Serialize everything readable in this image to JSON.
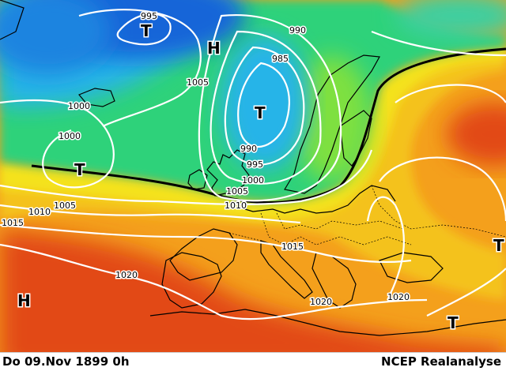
{
  "footer": {
    "date": "Do 09.Nov 1899  0h",
    "source": "NCEP Realanalyse"
  },
  "isobar_labels": [
    "995",
    "990",
    "985",
    "1005",
    "1000",
    "1000",
    "990",
    "995",
    "1000",
    "1005",
    "1010",
    "1005",
    "1010",
    "1015",
    "1015",
    "1020",
    "1020",
    "1020"
  ],
  "pressure_centers": [
    "T",
    "H",
    "T",
    "T",
    "H",
    "T",
    "T"
  ],
  "colors": {
    "deep_low": "#1565d8",
    "low": "#28b4e8",
    "mid_low": "#2fd27a",
    "neutral": "#f4e21c",
    "high": "#f4a01c",
    "very_high": "#e24a18",
    "isobar": "#ffffff",
    "coast": "#000000"
  }
}
